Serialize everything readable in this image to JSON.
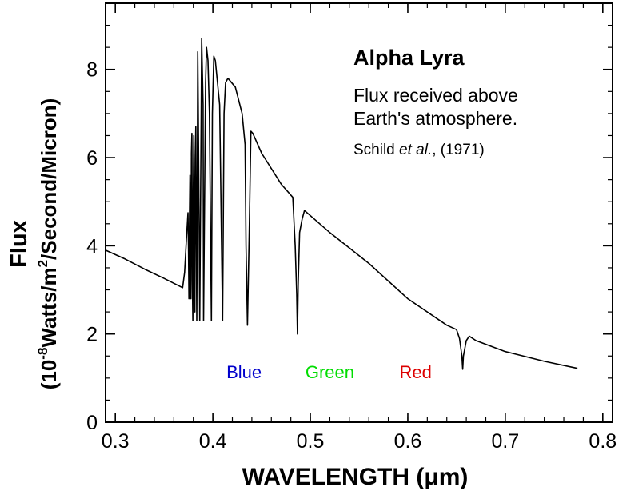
{
  "chart_data": {
    "type": "line",
    "title": "Alpha Lyra",
    "subtitle_lines": [
      "Flux received above",
      "Earth's atmosphere."
    ],
    "citation": {
      "author": "Schild ",
      "etal": "et al.",
      "rest": ", (1971)"
    },
    "xlabel": "WAVELENGTH (μm)",
    "ylabel_line1": "Flux",
    "ylabel_line2": {
      "open": "(10",
      "exp": "-8",
      "mid": "Watts/m",
      "exp2": "2",
      "close": "/Second/Micron)"
    },
    "xlim": [
      0.29,
      0.81
    ],
    "ylim": [
      0,
      9.5
    ],
    "xticks": [
      0.3,
      0.4,
      0.5,
      0.6,
      0.7,
      0.8
    ],
    "xtick_labels": [
      "0.3",
      "0.4",
      "0.5",
      "0.6",
      "0.7",
      "0.8"
    ],
    "yticks": [
      0,
      2,
      4,
      6,
      8
    ],
    "ytick_labels": [
      "0",
      "2",
      "4",
      "6",
      "8"
    ],
    "grid": false,
    "band_labels": [
      {
        "text": "Blue",
        "x": 0.432,
        "y": 1.0,
        "color": "#0000cc"
      },
      {
        "text": "Green",
        "x": 0.52,
        "y": 1.0,
        "color": "#00dd00"
      },
      {
        "text": "Red",
        "x": 0.608,
        "y": 1.0,
        "color": "#dd0000"
      }
    ],
    "series": [
      {
        "color": "#000000",
        "x": [
          0.29,
          0.31,
          0.33,
          0.35,
          0.369,
          0.371,
          0.373,
          0.3745,
          0.375,
          0.3755,
          0.376,
          0.3765,
          0.377,
          0.3775,
          0.378,
          0.3785,
          0.379,
          0.3795,
          0.38,
          0.3805,
          0.381,
          0.3815,
          0.382,
          0.3825,
          0.383,
          0.3835,
          0.384,
          0.3845,
          0.385,
          0.386,
          0.3865,
          0.388,
          0.3885,
          0.39,
          0.3905,
          0.3925,
          0.3935,
          0.395,
          0.3965,
          0.3985,
          0.3995,
          0.401,
          0.4025,
          0.407,
          0.41,
          0.4115,
          0.413,
          0.4155,
          0.423,
          0.43,
          0.433,
          0.434,
          0.4355,
          0.4375,
          0.439,
          0.441,
          0.45,
          0.47,
          0.482,
          0.4845,
          0.486,
          0.4868,
          0.4875,
          0.489,
          0.4915,
          0.494,
          0.52,
          0.56,
          0.6,
          0.64,
          0.65,
          0.653,
          0.6555,
          0.6563,
          0.657,
          0.66,
          0.663,
          0.67,
          0.7,
          0.74,
          0.774
        ],
        "y": [
          3.9,
          3.7,
          3.47,
          3.26,
          3.05,
          3.4,
          4.2,
          4.75,
          4.0,
          2.8,
          4.6,
          5.6,
          4.1,
          2.8,
          6.1,
          6.55,
          3.2,
          2.3,
          5.2,
          6.5,
          3.6,
          2.5,
          6.0,
          6.7,
          4.3,
          2.3,
          5.0,
          8.4,
          7.2,
          4.3,
          2.3,
          6.9,
          8.7,
          7.2,
          2.3,
          7.7,
          8.5,
          8.2,
          7.0,
          2.3,
          7.0,
          8.3,
          8.2,
          7.2,
          2.3,
          7.0,
          7.7,
          7.8,
          7.6,
          7.0,
          6.3,
          4.0,
          2.2,
          4.5,
          6.6,
          6.55,
          6.1,
          5.4,
          5.1,
          4.0,
          2.9,
          2.0,
          3.1,
          4.3,
          4.6,
          4.8,
          4.3,
          3.6,
          2.8,
          2.2,
          2.1,
          1.9,
          1.5,
          1.2,
          1.5,
          1.85,
          1.95,
          1.85,
          1.6,
          1.38,
          1.22
        ]
      }
    ]
  }
}
